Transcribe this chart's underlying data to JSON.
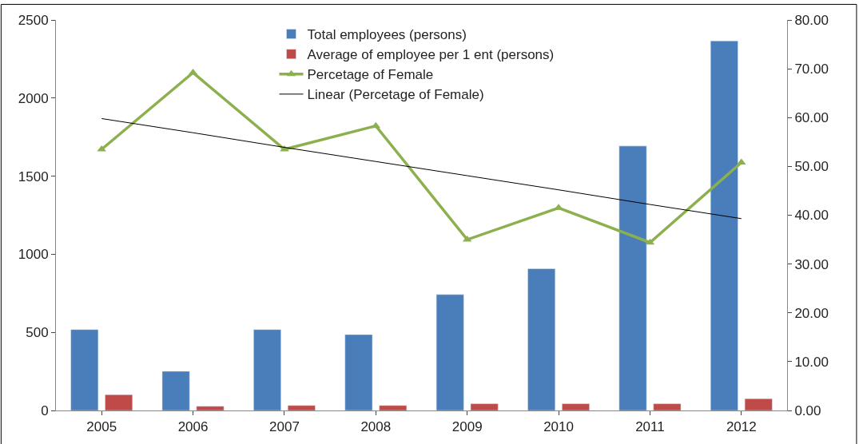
{
  "chart_data": {
    "type": "bar",
    "categories": [
      "2005",
      "2006",
      "2007",
      "2008",
      "2009",
      "2010",
      "2011",
      "2012"
    ],
    "series": [
      {
        "name": "Total employees (persons)",
        "color": "#4a7ebb",
        "values": [
          518,
          251,
          518,
          486,
          742,
          908,
          1693,
          2366
        ]
      },
      {
        "name": "Average of employee per 1 ent (persons)",
        "color": "#be4b48",
        "values": [
          101,
          27,
          32,
          32,
          43,
          43,
          43,
          75
        ]
      },
      {
        "name": "Percetage of Female",
        "type": "line",
        "axis": "y2",
        "color": "#8db04f",
        "marker": "triangle",
        "values": [
          53.5,
          69.2,
          53.5,
          58.3,
          35.0,
          41.5,
          34.4,
          50.8
        ]
      },
      {
        "name": "Linear (Percetage of Female)",
        "type": "line",
        "axis": "y2",
        "color": "#000000",
        "marker": "none",
        "values": [
          59.8,
          56.9,
          53.9,
          51.0,
          48.1,
          45.2,
          42.2,
          39.3
        ]
      }
    ],
    "ylim": [
      0,
      2500
    ],
    "yticks": [
      0,
      500,
      1000,
      1500,
      2000,
      2500
    ],
    "y2lim": [
      0,
      80
    ],
    "y2ticks": [
      {
        "value": 0,
        "label": "0.00"
      },
      {
        "value": 10,
        "label": "10.00"
      },
      {
        "value": 20,
        "label": "20.00"
      },
      {
        "value": 30,
        "label": "30.00"
      },
      {
        "value": 40,
        "label": "40.00"
      },
      {
        "value": 50,
        "label": "50.00"
      },
      {
        "value": 60,
        "label": "60.00"
      },
      {
        "value": 70,
        "label": "70.00"
      },
      {
        "value": 80,
        "label": "80.00"
      }
    ],
    "legend": "top"
  }
}
